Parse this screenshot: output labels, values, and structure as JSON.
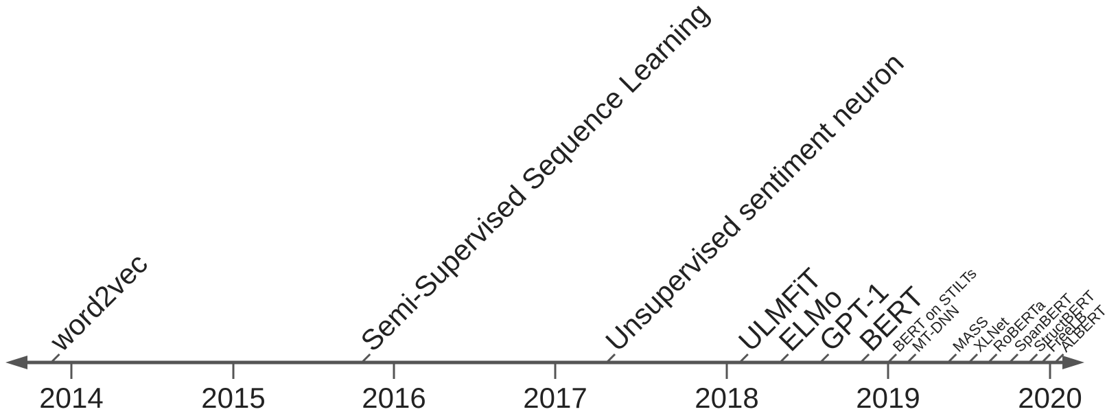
{
  "timeline": {
    "axis_color": "#555555",
    "years": [
      {
        "label": "2014",
        "value": 2014
      },
      {
        "label": "2015",
        "value": 2015
      },
      {
        "label": "2016",
        "value": 2016
      },
      {
        "label": "2017",
        "value": 2017
      },
      {
        "label": "2018",
        "value": 2018
      },
      {
        "label": "2019",
        "value": 2019
      },
      {
        "label": "2020",
        "value": 2020
      }
    ],
    "events": [
      {
        "label": "word2vec",
        "date": 2013.75
      },
      {
        "label": "Semi-Supervised Sequence Learning",
        "date": 2015.8
      },
      {
        "label": "Unsupervised sentiment neuron",
        "date": 2017.3
      },
      {
        "label": "ULMFiT",
        "date": 2018.08
      },
      {
        "label": "ELMo",
        "date": 2018.33
      },
      {
        "label": "GPT-1",
        "date": 2018.58
      },
      {
        "label": "BERT",
        "date": 2018.83
      },
      {
        "label": "BERT on STILTs",
        "date": 2019.0
      },
      {
        "label": "MT-DNN",
        "date": 2019.12
      },
      {
        "label": "MASS",
        "date": 2019.37
      },
      {
        "label": "XLNet",
        "date": 2019.5
      },
      {
        "label": "RoBERTa",
        "date": 2019.62
      },
      {
        "label": "SpanBERT",
        "date": 2019.75
      },
      {
        "label": "StructBERT",
        "date": 2019.87
      },
      {
        "label": "FreeLB",
        "date": 2019.95
      },
      {
        "label": "ALBERT",
        "date": 2020.05
      }
    ]
  }
}
